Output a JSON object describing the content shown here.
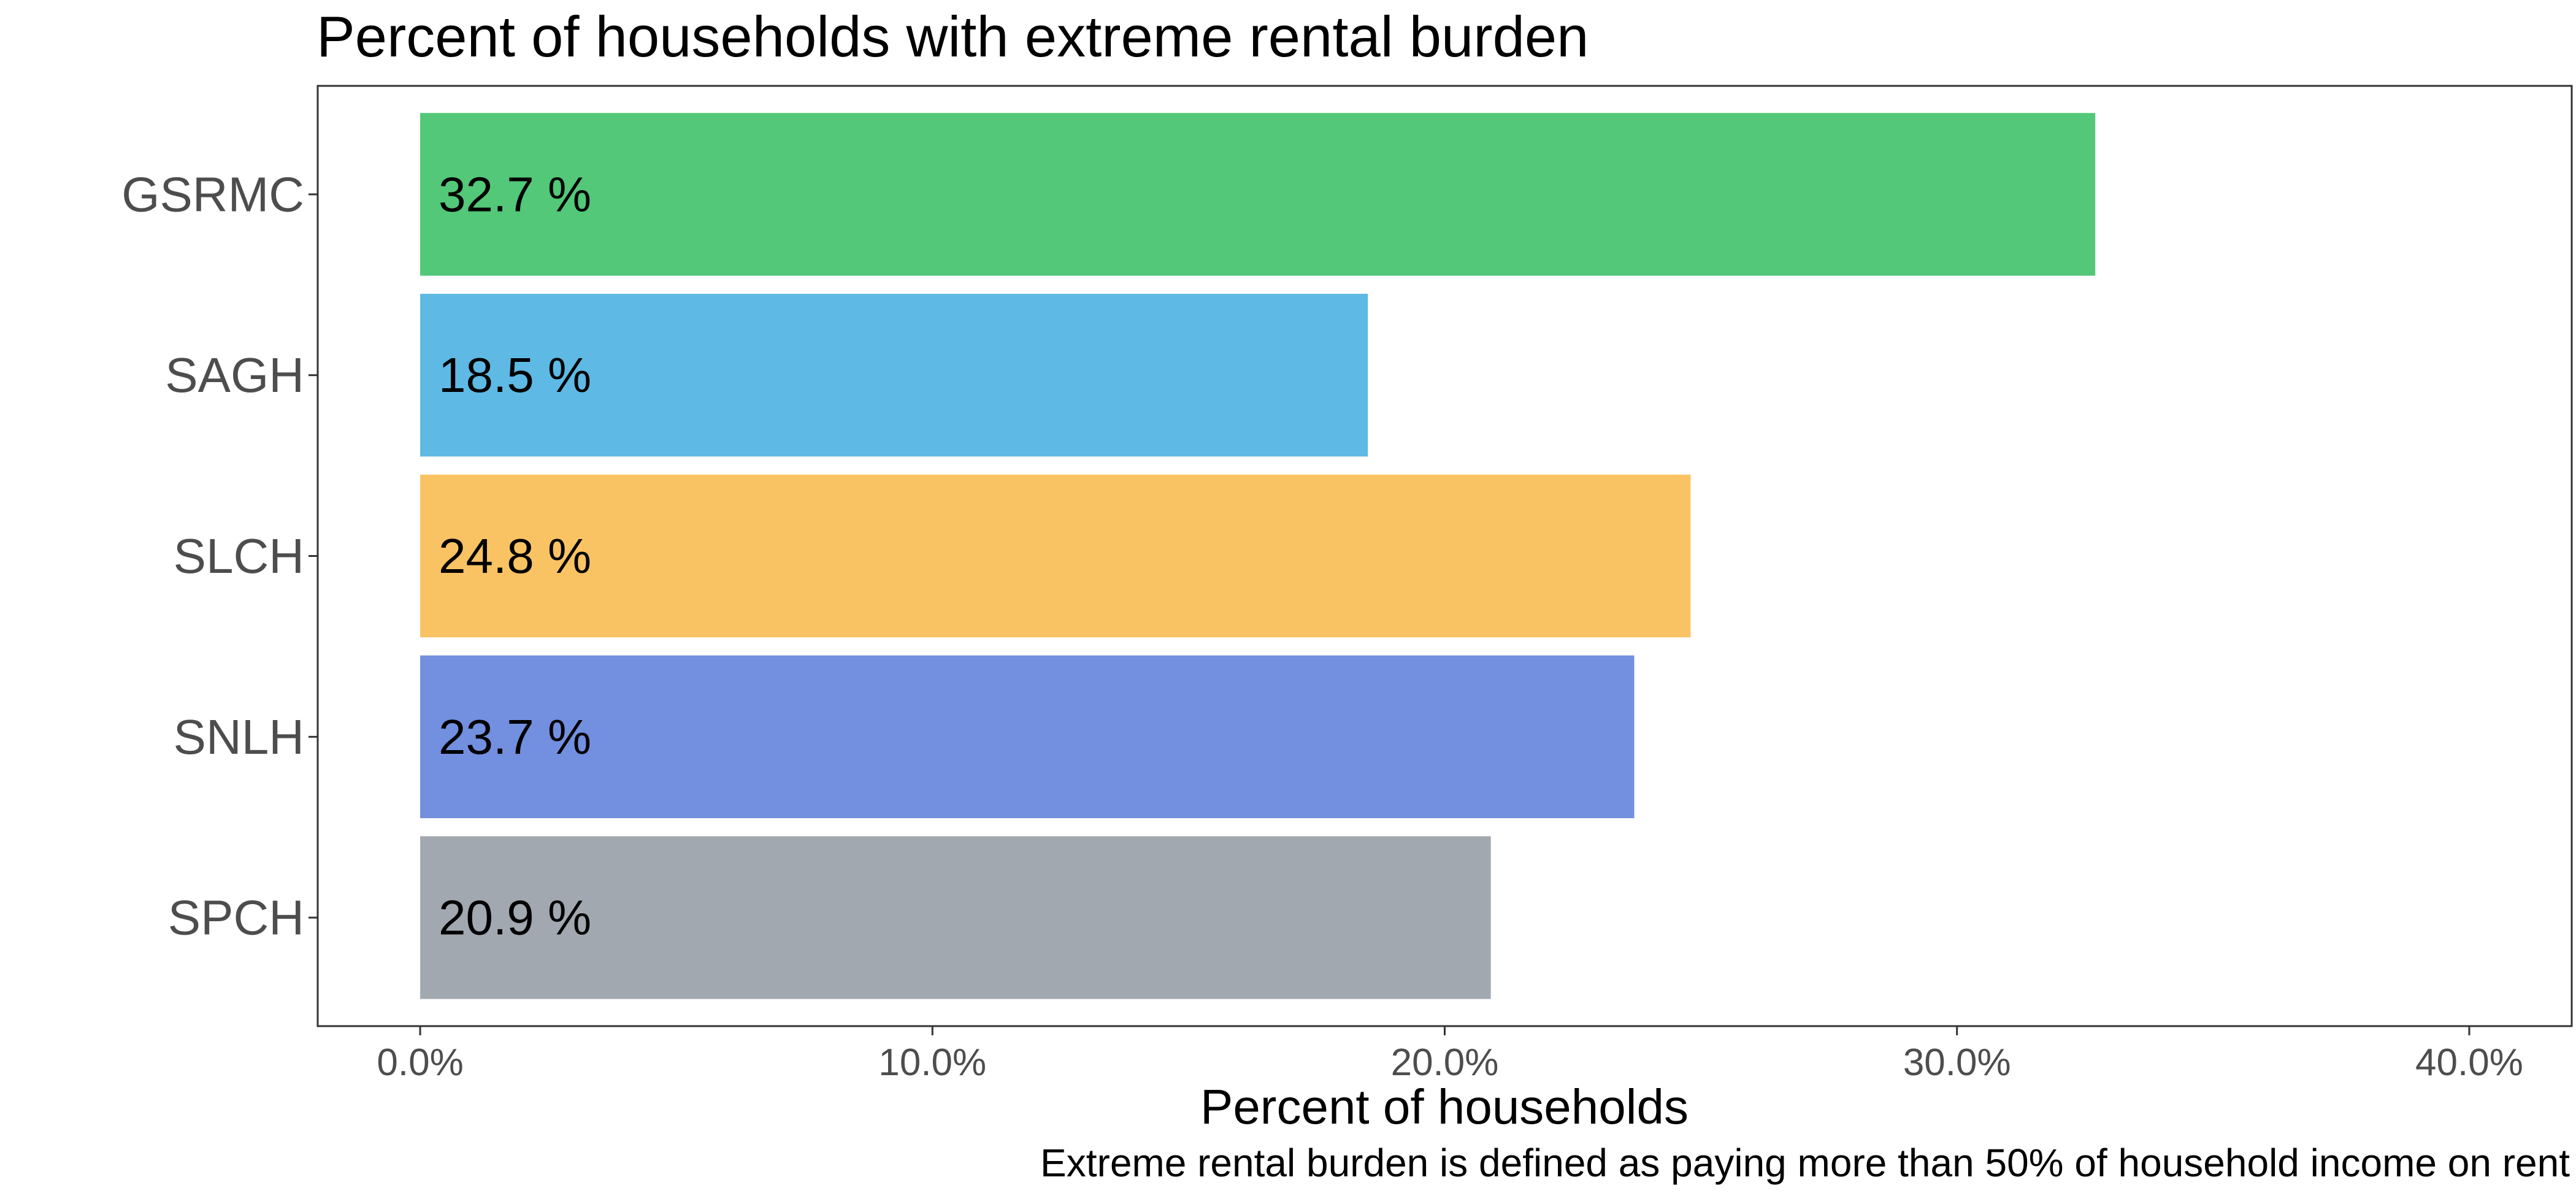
{
  "chart_data": {
    "type": "bar",
    "orientation": "horizontal",
    "title": "Percent of households with extreme rental burden",
    "xlabel": "Percent of households",
    "ylabel": "",
    "caption": "Extreme rental burden is defined as paying more than 50% of household income on rent",
    "categories": [
      "GSRMC",
      "SAGH",
      "SLCH",
      "SNLH",
      "SPCH"
    ],
    "values": [
      32.7,
      18.5,
      24.8,
      23.7,
      20.9
    ],
    "data_labels": [
      "32.7 %",
      "18.5 %",
      "24.8 %",
      "23.7 %",
      "20.9 %"
    ],
    "colors": [
      "#52c878",
      "#5eb9e4",
      "#f9c364",
      "#728fe0",
      "#a1a8af"
    ],
    "xlim": [
      -2,
      42
    ],
    "xticks": [
      0,
      10,
      20,
      30,
      40
    ],
    "xtick_labels": [
      "0.0%",
      "10.0%",
      "20.0%",
      "30.0%",
      "40.0%"
    ],
    "grid": false,
    "legend": "none"
  }
}
